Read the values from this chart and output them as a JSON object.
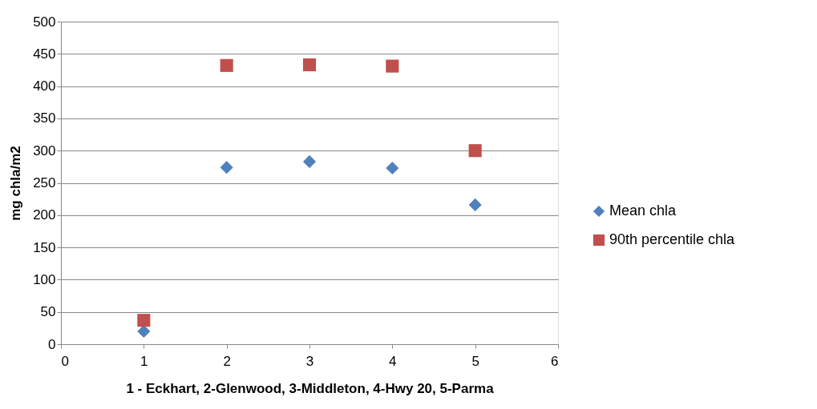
{
  "chart_data": {
    "type": "scatter",
    "xlabel": "1 - Eckhart, 2-Glenwood, 3-Middleton, 4-Hwy 20, 5-Parma",
    "ylabel": "mg chla/m2",
    "x": [
      1,
      2,
      3,
      4,
      5
    ],
    "series": [
      {
        "name": "Mean chla",
        "color": "#4f81bd",
        "marker": "diamond",
        "values": [
          20,
          274,
          283,
          273,
          216
        ]
      },
      {
        "name": "90th percentile chla",
        "color": "#c0504d",
        "marker": "square",
        "values": [
          37,
          432,
          433,
          431,
          300
        ]
      }
    ],
    "xlim": [
      0,
      6
    ],
    "xticks": [
      0,
      1,
      2,
      3,
      4,
      5,
      6
    ],
    "ylim": [
      0,
      500
    ],
    "yticks": [
      0,
      50,
      100,
      150,
      200,
      250,
      300,
      350,
      400,
      450,
      500
    ],
    "grid": "y",
    "legend": "right"
  }
}
